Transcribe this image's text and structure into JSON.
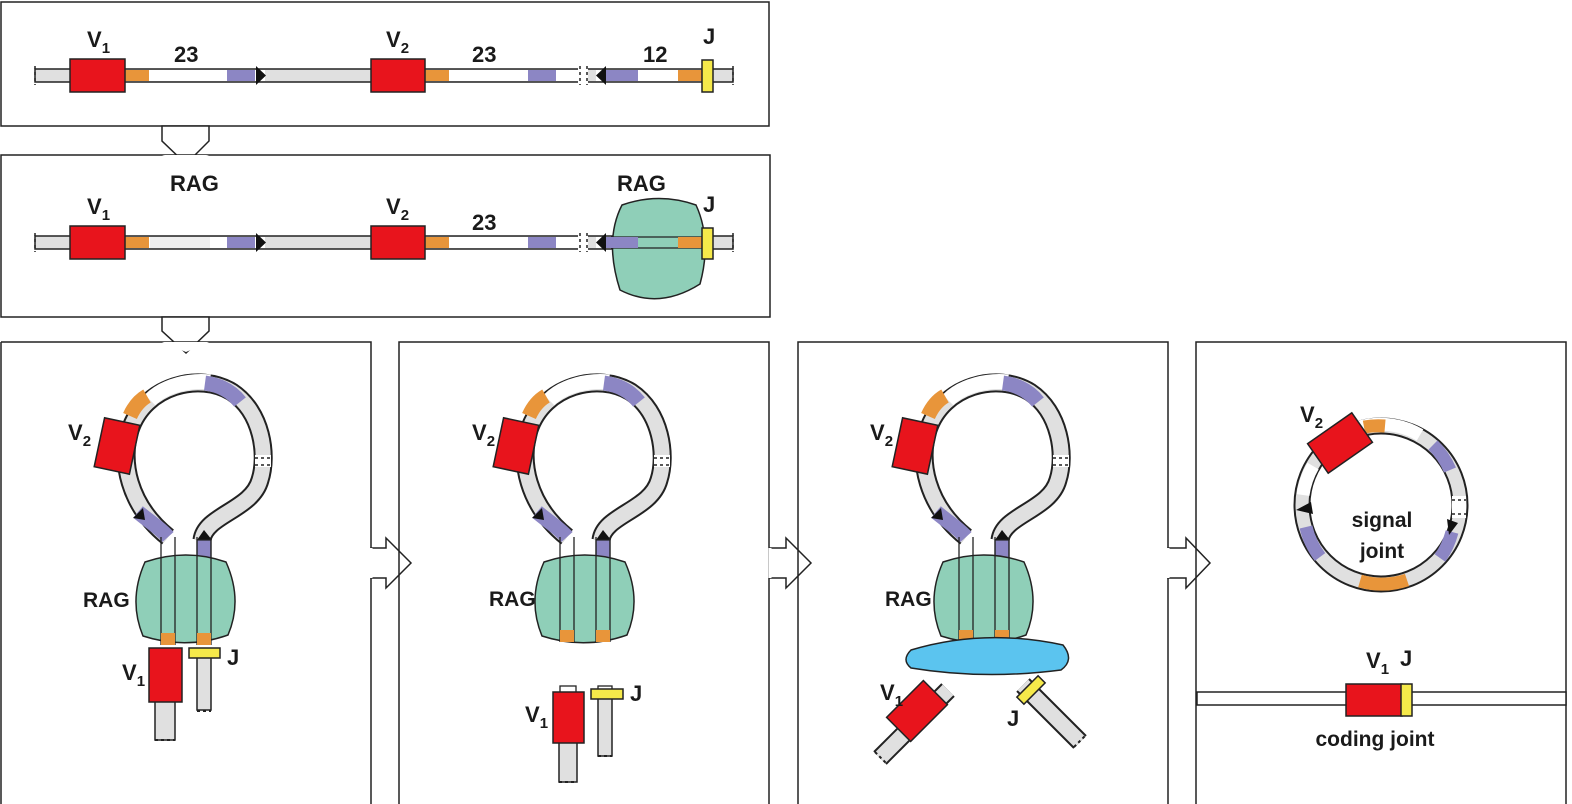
{
  "colors": {
    "v_segment": "#e8141c",
    "j_segment": "#f5e94a",
    "heptamer": "#e8953a",
    "nonamer": "#8c86c4",
    "rag": "#8fcfb8",
    "dna_pk": "#5bc4ef",
    "dna_strand": "#e0e0e0"
  },
  "panel1": {
    "v1": {
      "letter": "V",
      "sub": "1"
    },
    "v2": {
      "letter": "V",
      "sub": "2"
    },
    "j": "J",
    "spacer_a": "23",
    "spacer_b": "23",
    "spacer_c": "12"
  },
  "panel2": {
    "rag_top": "RAG",
    "rag_right": "RAG",
    "v1": {
      "letter": "V",
      "sub": "1"
    },
    "v2": {
      "letter": "V",
      "sub": "2"
    },
    "j": "J",
    "spacer": "23"
  },
  "panel3": {
    "v2": {
      "letter": "V",
      "sub": "2"
    },
    "v1": {
      "letter": "V",
      "sub": "1"
    },
    "rag": "RAG",
    "j": "J"
  },
  "panel4": {
    "v2": {
      "letter": "V",
      "sub": "2"
    },
    "v1": {
      "letter": "V",
      "sub": "1"
    },
    "rag": "RAG",
    "j": "J"
  },
  "panel5": {
    "v2": {
      "letter": "V",
      "sub": "2"
    },
    "v1": {
      "letter": "V",
      "sub": "1"
    },
    "rag": "RAG",
    "j": "J"
  },
  "panel6": {
    "v2": {
      "letter": "V",
      "sub": "2"
    },
    "signal_joint_line1": "signal",
    "signal_joint_line2": "joint",
    "v1": {
      "letter": "V",
      "sub": "1"
    },
    "j": "J",
    "coding_joint": "coding joint"
  }
}
